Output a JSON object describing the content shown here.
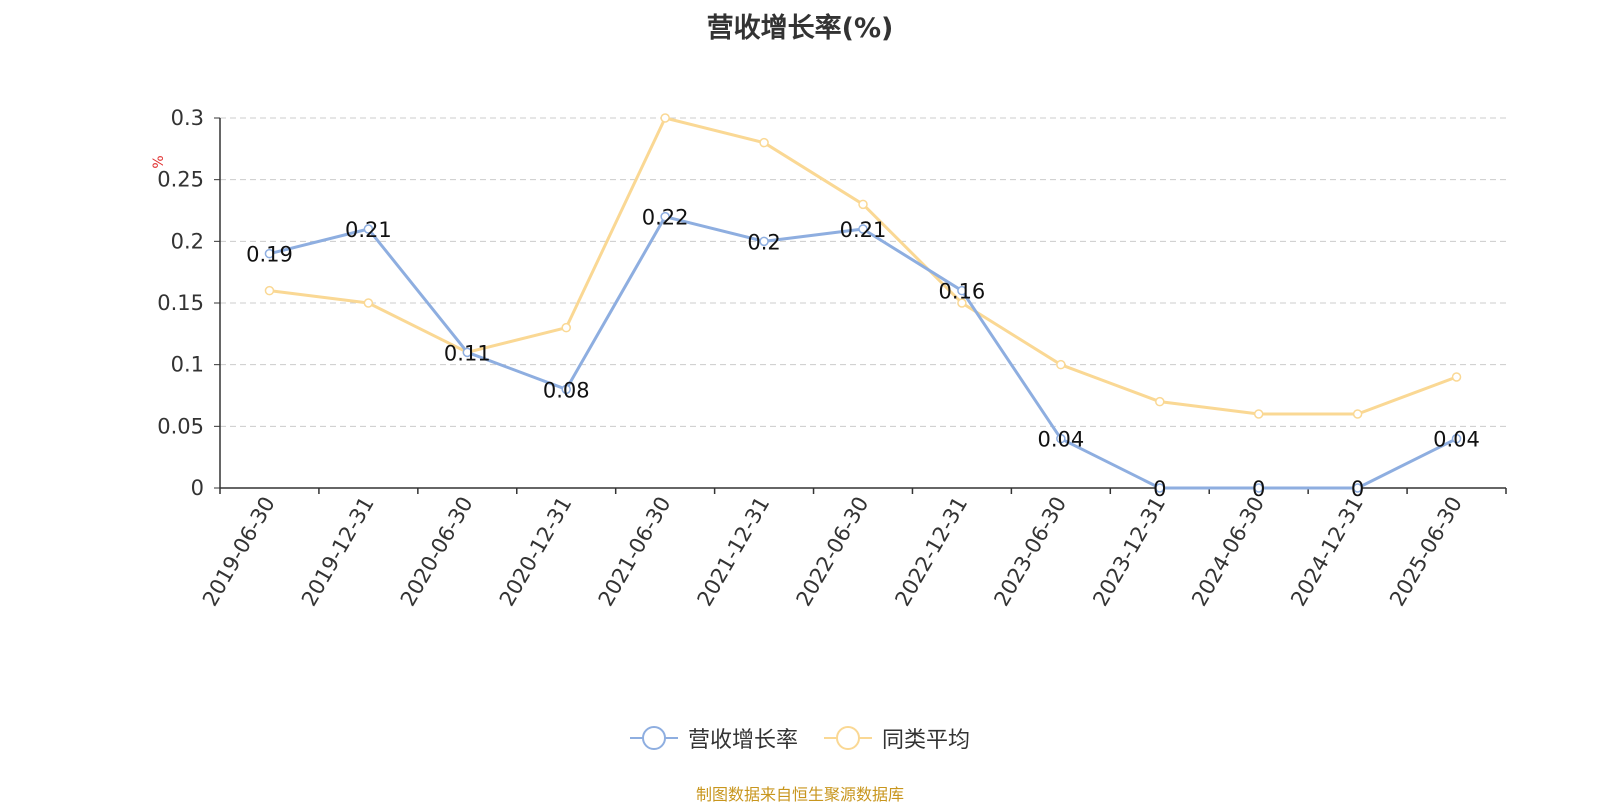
{
  "chart_data": {
    "type": "line",
    "title": "营收增长率(%)",
    "ylabel": "%",
    "xlabel": "",
    "categories": [
      "2019-06-30",
      "2019-12-31",
      "2020-06-30",
      "2020-12-31",
      "2021-06-30",
      "2021-12-31",
      "2022-06-30",
      "2022-12-31",
      "2023-06-30",
      "2023-12-31",
      "2024-06-30",
      "2024-12-31",
      "2025-06-30"
    ],
    "ylim": [
      0,
      0.3
    ],
    "yticks": [
      "0",
      "0.05",
      "0.1",
      "0.15",
      "0.2",
      "0.25",
      "0.3"
    ],
    "grid": true,
    "legend_position": "bottom",
    "series": [
      {
        "name": "营收增长率",
        "color": "#8eaee0",
        "values": [
          0.19,
          0.21,
          0.11,
          0.08,
          0.22,
          0.2,
          0.21,
          0.16,
          0.04,
          0,
          0,
          0,
          0.04
        ],
        "labels": [
          "0.19",
          "0.21",
          "0.11",
          "0.08",
          "0.22",
          "0.2",
          "0.21",
          "0.16",
          "0.04",
          "0",
          "0",
          "0",
          "0.04"
        ]
      },
      {
        "name": "同类平均",
        "color": "#fad894",
        "values": [
          0.16,
          0.15,
          0.11,
          0.13,
          0.3,
          0.28,
          0.23,
          0.15,
          0.1,
          0.07,
          0.06,
          0.06,
          0.09
        ]
      }
    ]
  },
  "source_note": "制图数据来自恒生聚源数据库",
  "colors": {
    "axis": "#333333",
    "grid": "#cccccc",
    "ylabel": "#e03030",
    "source": "#c8961e"
  }
}
